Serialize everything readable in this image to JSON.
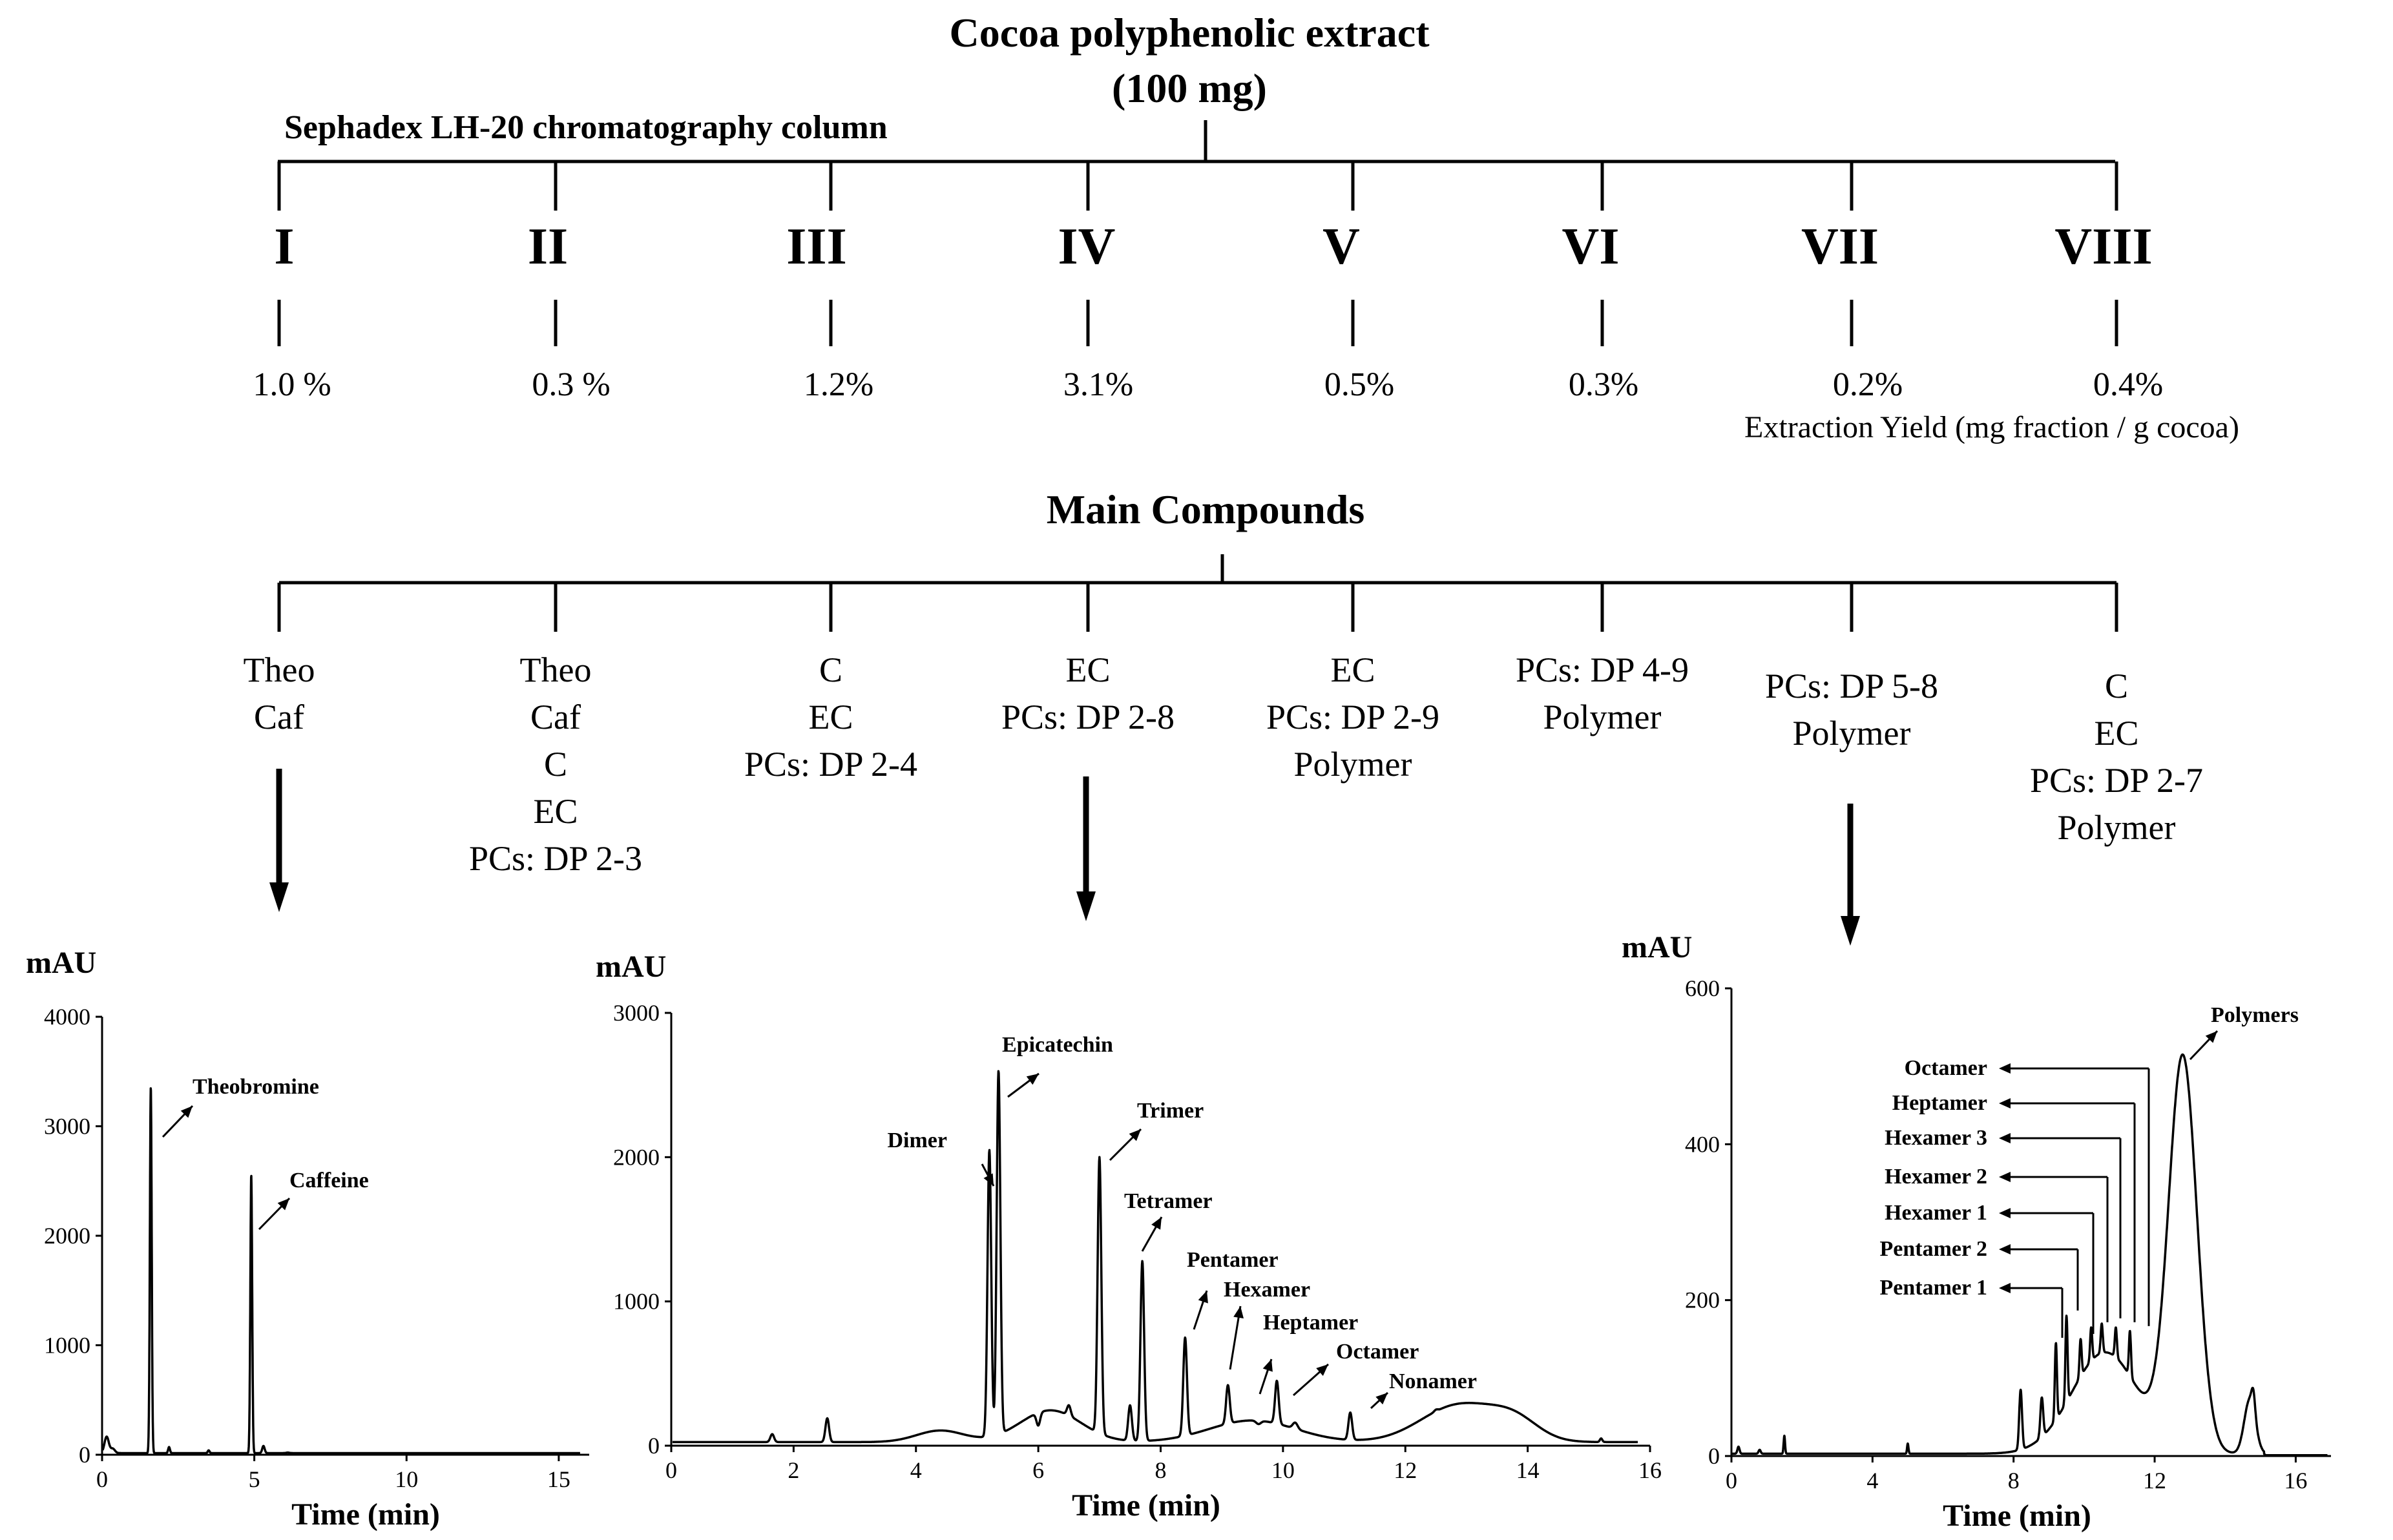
{
  "header": {
    "title_line1": "Cocoa polyphenolic extract",
    "title_line2": "(100 mg)",
    "column_label": "Sephadex LH-20 chromatography  column"
  },
  "fractions": [
    {
      "id": "I",
      "yield": "1.0 %",
      "compounds": [
        "Theo",
        "Caf"
      ]
    },
    {
      "id": "II",
      "yield": "0.3 %",
      "compounds": [
        "Theo",
        "Caf",
        "C",
        "EC",
        "PCs: DP 2-3"
      ]
    },
    {
      "id": "III",
      "yield": "1.2%",
      "compounds": [
        "C",
        "EC",
        "PCs: DP 2-4"
      ]
    },
    {
      "id": "IV",
      "yield": "3.1%",
      "compounds": [
        "EC",
        "PCs: DP 2-8"
      ]
    },
    {
      "id": "V",
      "yield": "0.5%",
      "compounds": [
        "EC",
        "PCs: DP 2-9",
        "Polymer"
      ]
    },
    {
      "id": "VI",
      "yield": "0.3%",
      "compounds": [
        "PCs: DP 4-9",
        "Polymer"
      ]
    },
    {
      "id": "VII",
      "yield": "0.2%",
      "compounds": [
        "PCs: DP 5-8",
        "Polymer"
      ]
    },
    {
      "id": "VIII",
      "yield": "0.4%",
      "compounds": [
        "C",
        "EC",
        "PCs: DP 2-7",
        "Polymer"
      ]
    }
  ],
  "yield_label": "Extraction Yield (mg fraction / g cocoa)",
  "main_compounds_label": "Main Compounds",
  "chart_data": [
    {
      "type": "line",
      "fraction": "I",
      "ylabel": "mAU",
      "xlabel": "Time (min)",
      "xlim": [
        0,
        16
      ],
      "ylim": [
        0,
        4000
      ],
      "x_ticks": [
        0,
        5,
        10,
        15
      ],
      "y_ticks": [
        0,
        1000,
        2000,
        3000,
        4000
      ],
      "peaks": [
        {
          "label": "Theobromine",
          "x": 1.6,
          "y": 3350
        },
        {
          "label": "Caffeine",
          "x": 4.9,
          "y": 2550
        }
      ]
    },
    {
      "type": "line",
      "fraction": "IV",
      "ylabel": "mAU",
      "xlabel": "Time (min)",
      "xlim": [
        0,
        16
      ],
      "ylim": [
        0,
        3000
      ],
      "x_ticks": [
        0,
        2,
        4,
        6,
        8,
        10,
        12,
        14,
        16
      ],
      "y_ticks": [
        0,
        1000,
        2000,
        3000
      ],
      "peaks": [
        {
          "label": "Dimer",
          "x": 5.2,
          "y": 2050
        },
        {
          "label": "Epicatechin",
          "x": 5.35,
          "y": 2600
        },
        {
          "label": "Trimer",
          "x": 7.0,
          "y": 2000
        },
        {
          "label": "Tetramer",
          "x": 7.7,
          "y": 1280
        },
        {
          "label": "Pentamer",
          "x": 8.4,
          "y": 750
        },
        {
          "label": "Hexamer",
          "x": 9.1,
          "y": 420
        },
        {
          "label": "Heptamer",
          "x": 9.9,
          "y": 450
        },
        {
          "label": "Octamer",
          "x": 11.1,
          "y": 230
        },
        {
          "label": "Nonamer",
          "x": 12.5,
          "y": 250
        }
      ]
    },
    {
      "type": "line",
      "fraction": "VII",
      "ylabel": "mAU",
      "xlabel": "Time (min)",
      "xlim": [
        0,
        17
      ],
      "ylim": [
        0,
        600
      ],
      "x_ticks": [
        0,
        4,
        8,
        12,
        16
      ],
      "y_ticks": [
        0,
        200,
        400,
        600
      ],
      "peaks": [
        {
          "label": "Pentamer 1",
          "x": 9.2,
          "y": 145
        },
        {
          "label": "Pentamer 2",
          "x": 9.5,
          "y": 180
        },
        {
          "label": "Hexamer 1",
          "x": 9.9,
          "y": 150
        },
        {
          "label": "Hexamer 2",
          "x": 10.2,
          "y": 165
        },
        {
          "label": "Hexamer 3",
          "x": 10.5,
          "y": 170
        },
        {
          "label": "Heptamer",
          "x": 10.9,
          "y": 165
        },
        {
          "label": "Octamer",
          "x": 11.3,
          "y": 160
        },
        {
          "label": "Polymers",
          "x": 12.8,
          "y": 515
        }
      ]
    }
  ]
}
